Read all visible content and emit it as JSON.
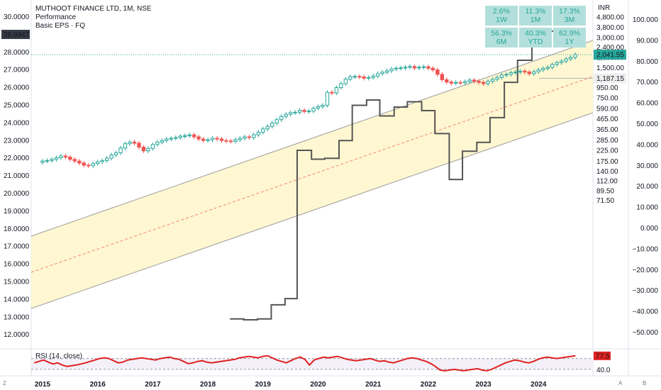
{
  "header": {
    "title": "MUTHOOT FINANCE LTD, 1M, NSE",
    "line2": "Performance",
    "line3": "Basic EPS · FQ"
  },
  "performance": [
    {
      "value": "2.6%",
      "period": "1W"
    },
    {
      "value": "11.3%",
      "period": "1M"
    },
    {
      "value": "17.3%",
      "period": "3M"
    },
    {
      "value": "56.3%",
      "period": "6M"
    },
    {
      "value": "40.3%",
      "period": "YTD"
    },
    {
      "value": "62.9%",
      "period": "1Y"
    }
  ],
  "colors": {
    "up": "#26a69a",
    "down": "#ef5350",
    "eps": "#555555",
    "rsi": "#e02020",
    "channel_fill": "#fff7d1"
  },
  "buttons": {
    "z": "Z",
    "a": "A",
    "b": "B"
  },
  "chart_data": {
    "type": "candlestick",
    "title": "MUTHOOT FINANCE LTD, 1M, NSE",
    "x_ticks": [
      "2015",
      "2016",
      "2017",
      "2018",
      "2019",
      "2020",
      "2021",
      "2022",
      "2023",
      "2024"
    ],
    "left_axis": {
      "ticks": [
        "30.0000",
        "29.0000",
        "28.0000",
        "27.0000",
        "26.0000",
        "25.0000",
        "24.0000",
        "23.0000",
        "22.0000",
        "21.0000",
        "20.0000",
        "19.0000",
        "18.0000",
        "17.0000",
        "16.0000",
        "15.0000",
        "14.0000",
        "13.0000",
        "12.0000"
      ],
      "current_label": "28.9947",
      "current_value": 28.9947
    },
    "price_axis": {
      "unit": "INR",
      "scale": "log",
      "ticks": [
        "4,800.00",
        "3,800.00",
        "3,000.00",
        "2,400.00",
        "1,900.00",
        "1,500.00",
        "1,200.00",
        "950.00",
        "750.00",
        "590.00",
        "465.00",
        "365.00",
        "285.00",
        "225.00",
        "175.00",
        "140.00",
        "112.00",
        "89.50",
        "71.50"
      ],
      "tick_values": [
        4800,
        3800,
        3000,
        2400,
        1900,
        1500,
        1200,
        950,
        750,
        590,
        465,
        365,
        285,
        225,
        175,
        140,
        112,
        89.5,
        71.5
      ],
      "last_price_label": "2,041.55",
      "last_price": 2041.55,
      "level_label": "1,187.15",
      "level": 1187.15
    },
    "perf_axis": {
      "ticks": [
        "100.000",
        "90.000",
        "80.000",
        "70.000",
        "60.000",
        "50.000",
        "40.000",
        "30.000",
        "20.000",
        "10.000",
        "0.000",
        "−10.000",
        "−20.000",
        "−30.000",
        "−40.000",
        "−50.000"
      ]
    },
    "eps_series": {
      "name": "Basic EPS · FQ",
      "x": [
        2018.4,
        2018.65,
        2018.9,
        2019.15,
        2019.4,
        2019.62,
        2019.88,
        2020.12,
        2020.38,
        2020.62,
        2020.88,
        2021.12,
        2021.38,
        2021.62,
        2021.88,
        2022.12,
        2022.38,
        2022.62,
        2022.88,
        2023.12,
        2023.38,
        2023.62,
        2023.88,
        2024.12,
        2024.38
      ],
      "y": [
        12.9,
        12.85,
        12.9,
        13.7,
        14.05,
        22.45,
        21.95,
        22.0,
        23.0,
        25.0,
        25.3,
        24.4,
        24.9,
        25.2,
        24.7,
        23.4,
        20.8,
        22.4,
        22.9,
        24.3,
        26.3,
        27.55,
        28.55,
        29.2,
        29.25
      ]
    },
    "candles": {
      "x": [
        2015.0,
        2015.083,
        2015.167,
        2015.25,
        2015.333,
        2015.417,
        2015.5,
        2015.583,
        2015.667,
        2015.75,
        2015.833,
        2015.917,
        2016.0,
        2016.083,
        2016.167,
        2016.25,
        2016.333,
        2016.417,
        2016.5,
        2016.583,
        2016.667,
        2016.75,
        2016.833,
        2016.917,
        2017.0,
        2017.083,
        2017.167,
        2017.25,
        2017.333,
        2017.417,
        2017.5,
        2017.583,
        2017.667,
        2017.75,
        2017.833,
        2017.917,
        2018.0,
        2018.083,
        2018.167,
        2018.25,
        2018.333,
        2018.417,
        2018.5,
        2018.583,
        2018.667,
        2018.75,
        2018.833,
        2018.917,
        2019.0,
        2019.083,
        2019.167,
        2019.25,
        2019.333,
        2019.417,
        2019.5,
        2019.583,
        2019.667,
        2019.75,
        2019.833,
        2019.917,
        2020.0,
        2020.083,
        2020.167,
        2020.25,
        2020.333,
        2020.417,
        2020.5,
        2020.583,
        2020.667,
        2020.75,
        2020.833,
        2020.917,
        2021.0,
        2021.083,
        2021.167,
        2021.25,
        2021.333,
        2021.417,
        2021.5,
        2021.583,
        2021.667,
        2021.75,
        2021.833,
        2021.917,
        2022.0,
        2022.083,
        2022.167,
        2022.25,
        2022.333,
        2022.417,
        2022.5,
        2022.583,
        2022.667,
        2022.75,
        2022.833,
        2022.917,
        2023.0,
        2023.083,
        2023.167,
        2023.25,
        2023.333,
        2023.417,
        2023.5,
        2023.583,
        2023.667,
        2023.75,
        2023.833,
        2023.917,
        2024.0,
        2024.083,
        2024.167,
        2024.25,
        2024.333,
        2024.417,
        2024.5,
        2024.583,
        2024.667
      ],
      "close": [
        178,
        180,
        185,
        192,
        200,
        195,
        185,
        178,
        170,
        162,
        160,
        168,
        175,
        180,
        190,
        205,
        215,
        240,
        265,
        275,
        268,
        245,
        225,
        238,
        260,
        275,
        285,
        295,
        300,
        305,
        315,
        318,
        325,
        310,
        295,
        285,
        290,
        300,
        295,
        285,
        282,
        280,
        290,
        300,
        310,
        305,
        325,
        345,
        372,
        395,
        425,
        460,
        495,
        520,
        540,
        545,
        570,
        555,
        560,
        598,
        620,
        640,
        860,
        850,
        960,
        1050,
        1165,
        1230,
        1240,
        1225,
        1190,
        1210,
        1250,
        1320,
        1365,
        1410,
        1470,
        1495,
        1510,
        1530,
        1555,
        1505,
        1530,
        1545,
        1495,
        1440,
        1300,
        1150,
        1090,
        1060,
        1080,
        1070,
        1100,
        1140,
        1110,
        1080,
        1050,
        1110,
        1160,
        1210,
        1280,
        1300,
        1350,
        1370,
        1400,
        1370,
        1320,
        1380,
        1440,
        1490,
        1530,
        1630,
        1700,
        1760,
        1850,
        1920,
        2041
      ]
    },
    "rsi": {
      "label": "RSI (14, close)",
      "current": "77.5",
      "current_value": 77.5,
      "level_label": "40.0",
      "levels": [
        70,
        40
      ],
      "values": [
        58,
        62,
        66,
        60,
        55,
        58,
        52,
        48,
        50,
        52,
        55,
        58,
        62,
        66,
        70,
        72,
        70,
        64,
        58,
        60,
        66,
        68,
        70,
        72,
        70,
        68,
        66,
        70,
        72,
        74,
        70,
        68,
        62,
        56,
        58,
        62,
        64,
        60,
        58,
        60,
        62,
        64,
        66,
        68,
        72,
        74,
        76,
        74,
        72,
        76,
        78,
        72,
        66,
        62,
        58,
        64,
        70,
        74,
        68,
        52,
        66,
        70,
        74,
        72,
        74,
        76,
        72,
        68,
        66,
        64,
        66,
        68,
        70,
        66,
        62,
        64,
        60,
        58,
        62,
        66,
        70,
        72,
        70,
        66,
        62,
        56,
        48,
        38,
        36,
        38,
        40,
        38,
        36,
        38,
        40,
        42,
        38,
        36,
        40,
        46,
        52,
        58,
        62,
        66,
        64,
        60,
        58,
        62,
        68,
        72,
        74,
        72,
        70,
        72,
        74,
        76,
        77.5
      ]
    }
  }
}
